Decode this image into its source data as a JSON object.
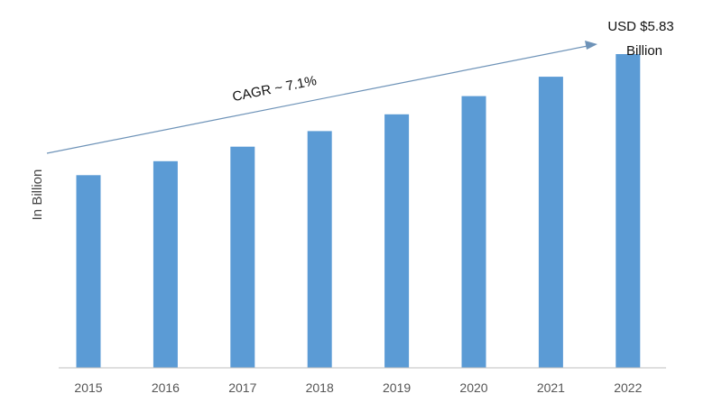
{
  "chart_data": {
    "type": "bar",
    "categories": [
      "2015",
      "2016",
      "2017",
      "2018",
      "2019",
      "2020",
      "2021",
      "2022"
    ],
    "values": [
      3.58,
      3.84,
      4.11,
      4.4,
      4.71,
      5.05,
      5.41,
      5.83
    ],
    "ylabel": "In Billion",
    "xlabel": "",
    "ylim": [
      0,
      6.5
    ],
    "grid": false,
    "legend": "none",
    "bar_color": "#5b9bd5",
    "trend_color": "#6e93b8",
    "annotations": {
      "cagr": "CAGR ~ 7.1%",
      "final_value_line1": "USD $5.83",
      "final_value_line2": "Billion"
    }
  }
}
